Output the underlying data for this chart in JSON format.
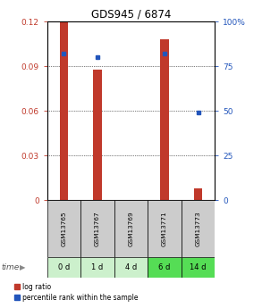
{
  "title": "GDS945 / 6874",
  "samples": [
    "GSM13765",
    "GSM13767",
    "GSM13769",
    "GSM13771",
    "GSM13773"
  ],
  "time_labels": [
    "0 d",
    "1 d",
    "4 d",
    "6 d",
    "14 d"
  ],
  "log_ratio": [
    0.12,
    0.088,
    0.0,
    0.108,
    0.008
  ],
  "percentile_rank": [
    82,
    80,
    0,
    82,
    49
  ],
  "left_ylim": [
    0,
    0.12
  ],
  "right_ylim": [
    0,
    100
  ],
  "left_yticks": [
    0,
    0.03,
    0.06,
    0.09,
    0.12
  ],
  "right_yticks": [
    0,
    25,
    50,
    75,
    100
  ],
  "left_yticklabels": [
    "0",
    "0.03",
    "0.06",
    "0.09",
    "0.12"
  ],
  "right_yticklabels": [
    "0",
    "25",
    "50",
    "75",
    "100%"
  ],
  "bar_color": "#c0392b",
  "dot_color": "#2255bb",
  "sample_bg_color": "#cccccc",
  "time_bg_colors": [
    "#ccf0cc",
    "#ccf0cc",
    "#ccf0cc",
    "#55dd55",
    "#55dd55"
  ],
  "bar_width": 0.25
}
